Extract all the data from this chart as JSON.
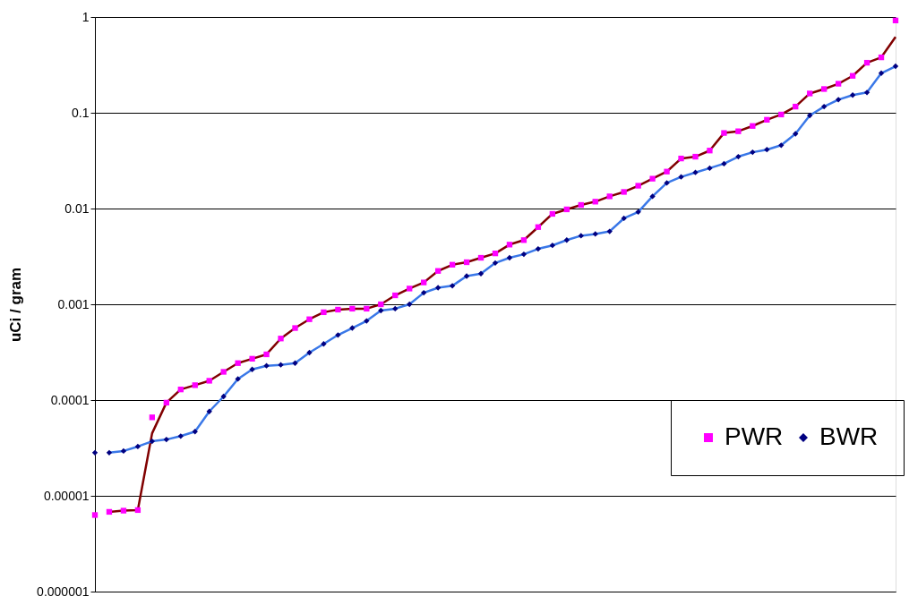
{
  "chart_data": {
    "type": "scatter",
    "ylabel": "uCi / gram",
    "log": "y",
    "grid": "y",
    "legend": "right",
    "tick_labels": "y",
    "categories": [
      null,
      null,
      null,
      null,
      null,
      null,
      null,
      null,
      null,
      null,
      null,
      null,
      null,
      null,
      null,
      null,
      null,
      null,
      null,
      null,
      null,
      null,
      null,
      null,
      null,
      null,
      null,
      null,
      null,
      null,
      null,
      null,
      null,
      null,
      null,
      null,
      null,
      null,
      null,
      null,
      null,
      null,
      null,
      null,
      null,
      null,
      null,
      null,
      null,
      null,
      null,
      null,
      null,
      null,
      null,
      null,
      null
    ],
    "ylim": [
      1e-06,
      1
    ],
    "yticks": [
      {
        "value": 1e-06,
        "label": "0.000001"
      },
      {
        "value": 1e-05,
        "label": "0.00001"
      },
      0.0001,
      0.001,
      0.01,
      0.1,
      1
    ],
    "series": [
      {
        "name": "PWR",
        "type": "scatter",
        "marker": "square",
        "color": "#ff00ff",
        "values": [
          6.3e-06,
          6.8e-06,
          7e-06,
          7.1e-06,
          6.6e-05,
          9.4e-05,
          0.000129,
          0.000143,
          0.000159,
          0.000197,
          0.000243,
          0.00027,
          0.0003,
          0.000439,
          0.000565,
          0.000698,
          0.000826,
          0.00088,
          0.0009,
          0.0009,
          0.001,
          0.00124,
          0.00146,
          0.00169,
          0.00223,
          0.00259,
          0.00275,
          0.00306,
          0.0034,
          0.0042,
          0.00468,
          0.0064,
          0.0088,
          0.0098,
          0.0109,
          0.0118,
          0.0134,
          0.0149,
          0.0173,
          0.0205,
          0.0243,
          0.0333,
          0.0348,
          0.0403,
          0.0615,
          0.0641,
          0.0728,
          0.0845,
          0.0959,
          0.116,
          0.159,
          0.177,
          0.201,
          0.243,
          0.333,
          0.379,
          0.92
        ]
      },
      {
        "name": "BWR",
        "type": "scatter",
        "marker": "diamond",
        "color": "#000080",
        "values": [
          2.82e-05,
          2.82e-05,
          2.94e-05,
          3.27e-05,
          3.71e-05,
          3.87e-05,
          4.2e-05,
          4.68e-05,
          7.6e-05,
          0.000109,
          0.000166,
          0.000209,
          0.000228,
          0.000233,
          0.000243,
          0.000313,
          0.000386,
          0.000478,
          0.000565,
          0.00067,
          0.00086,
          0.0009,
          0.001,
          0.00132,
          0.00149,
          0.00156,
          0.00197,
          0.00209,
          0.0027,
          0.00306,
          0.00333,
          0.00379,
          0.00412,
          0.00468,
          0.0052,
          0.00542,
          0.00577,
          0.0079,
          0.0092,
          0.0134,
          0.0185,
          0.0214,
          0.0238,
          0.0264,
          0.0294,
          0.0348,
          0.0387,
          0.0412,
          0.0458,
          0.0603,
          0.0938,
          0.116,
          0.137,
          0.153,
          0.163,
          0.259,
          0.306
        ]
      },
      {
        "type": "line",
        "color": "#800000",
        "values": [
          null,
          6.8e-06,
          7e-06,
          7.1e-06,
          4.5e-05,
          9.4e-05,
          0.000129,
          0.000143,
          0.000159,
          0.000197,
          0.000243,
          0.00027,
          0.0003,
          0.000439,
          0.000565,
          0.000698,
          0.000826,
          0.00088,
          0.0009,
          0.0009,
          0.001,
          0.00124,
          0.00146,
          0.00169,
          0.00223,
          0.00259,
          0.00275,
          0.00306,
          0.0034,
          0.0042,
          0.00468,
          0.0064,
          0.0088,
          0.0098,
          0.0109,
          0.0118,
          0.0134,
          0.0149,
          0.0173,
          0.0205,
          0.0243,
          0.0333,
          0.0348,
          0.0403,
          0.0615,
          0.0641,
          0.0728,
          0.0845,
          0.0959,
          0.116,
          0.159,
          0.177,
          0.201,
          0.243,
          0.333,
          0.379,
          0.62
        ]
      },
      {
        "type": "line",
        "color": "#3a78e8",
        "values": [
          null,
          2.82e-05,
          2.94e-05,
          3.27e-05,
          3.71e-05,
          3.87e-05,
          4.2e-05,
          4.68e-05,
          7.6e-05,
          0.000109,
          0.000166,
          0.000209,
          0.000228,
          0.000233,
          0.000243,
          0.000313,
          0.000386,
          0.000478,
          0.000565,
          0.00067,
          0.00086,
          0.0009,
          0.001,
          0.00132,
          0.00149,
          0.00156,
          0.00197,
          0.00209,
          0.0027,
          0.00306,
          0.00333,
          0.00379,
          0.00412,
          0.00468,
          0.0052,
          0.00542,
          0.00577,
          0.0079,
          0.0092,
          0.0134,
          0.0185,
          0.0214,
          0.0238,
          0.0264,
          0.0294,
          0.0348,
          0.0387,
          0.0412,
          0.0458,
          0.0603,
          0.0938,
          0.116,
          0.137,
          0.153,
          0.163,
          0.259,
          0.306
        ]
      }
    ]
  }
}
